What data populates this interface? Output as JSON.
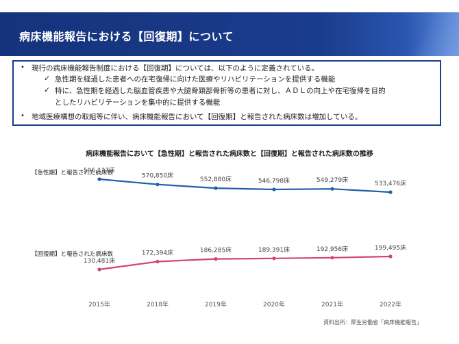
{
  "header": {
    "title": "病床機能報告における【回復期】について"
  },
  "summary": {
    "bullet1": "現行の病床機能報告制度における【回復期】については、以下のように定義されている。",
    "check1": "急性期を経過した患者への在宅復帰に向けた医療やリハビリテーションを提供する機能",
    "check2_line1": "特に、急性期を経過した脳血管疾患や大腿骨頚部骨折等の患者に対し、ＡＤＬの向上や在宅復帰を目的",
    "check2_line2": "としたリハビリテーションを集中的に提供する機能",
    "bullet2": "地域医療構想の取組等に伴い、病床機能報告において【回復期】と報告された病床数は増加している。"
  },
  "source": "資料出所：厚生労働省「病床機能報告」",
  "chart_data": {
    "type": "line",
    "title": "病床機能報告において【急性期】と報告された病床数と【回復期】と報告された病床数の推移",
    "categories": [
      "2015年",
      "2018年",
      "2019年",
      "2020年",
      "2021年",
      "2022年"
    ],
    "series": [
      {
        "name": "【急性期】と報告された病床数",
        "values": [
          596137,
          570850,
          552880,
          546798,
          549279,
          533476
        ],
        "labels": [
          "596,137床",
          "570,850床",
          "552,880床",
          "546,798床",
          "549,279床",
          "533,476床"
        ],
        "color": "#1f5fa8"
      },
      {
        "name": "【回復期】と報告された病床数",
        "values": [
          130481,
          172394,
          186285,
          189391,
          192956,
          199495
        ],
        "labels": [
          "130,481床",
          "172,394床",
          "186,285床",
          "189,391床",
          "192,956床",
          "199,495床"
        ],
        "color": "#d0456e"
      }
    ],
    "grid": false,
    "legend": "left"
  }
}
